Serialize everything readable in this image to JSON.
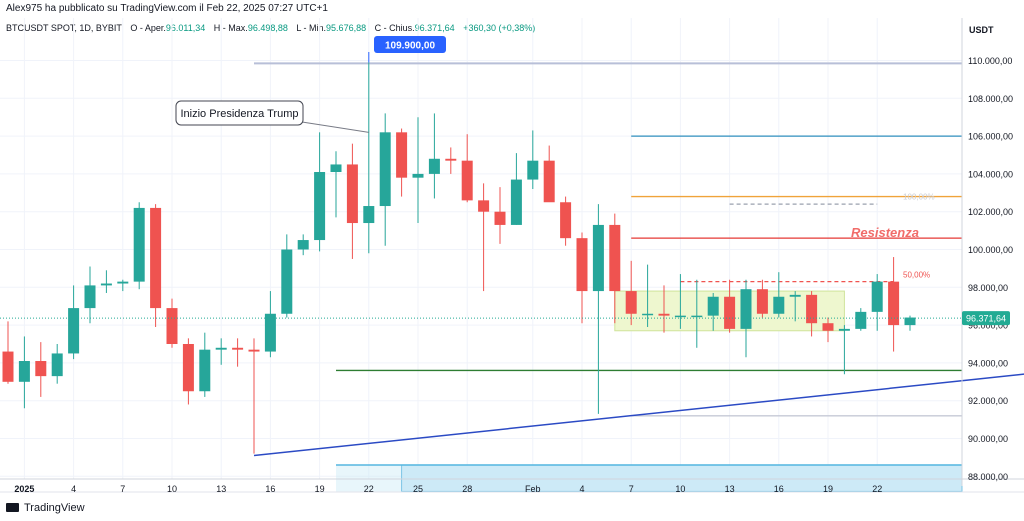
{
  "header": {
    "published_by": "Alex975 ha pubblicato su TradingView.com il Feb 22, 2025 07:27 UTC+1",
    "symbol": "BTCUSDT SPOT, 1D, BYBIT",
    "open_label": "O - Aper.",
    "open_value": "96.011,34",
    "high_label": "H - Max.",
    "high_value": "96.498,88",
    "low_label": "L - Min.",
    "low_value": "95.676,88",
    "close_label": "C - Chius.",
    "close_value": "96.371,64",
    "change_value": "+360,30 (+0,38%)"
  },
  "footer": {
    "logo_text": "TradingView"
  },
  "colors": {
    "up": "#26a69a",
    "down": "#ef5350",
    "support_line": "#2e7d32",
    "trendline": "#2b4ac4",
    "resistance_line": "#e53935",
    "orange_line": "#f0a33a",
    "teal_line": "#2f8fbe",
    "consolidation_box": "#eef7cf",
    "demand_zone": "#cdeaf7",
    "price_badge": "#22ab94",
    "callout_blue": "#2962ff"
  },
  "chart_data": {
    "type": "candlestick",
    "title": "BTCUSDT SPOT, 1D, BYBIT",
    "currency_label": "USDT",
    "ylim": [
      87200,
      112100
    ],
    "y_ticks": [
      88000,
      90000,
      92000,
      94000,
      96000,
      98000,
      100000,
      102000,
      104000,
      106000,
      108000,
      110000
    ],
    "y_tick_labels": [
      "88.000,00",
      "90.000,00",
      "92.000,00",
      "94.000,00",
      "96.000,00",
      "98.000,00",
      "100.000,00",
      "102.000,00",
      "104.000,00",
      "106.000,00",
      "108.000,00",
      "110.000,00"
    ],
    "x_tick_labels": [
      "2025",
      "4",
      "7",
      "10",
      "13",
      "16",
      "19",
      "22",
      "25",
      "28",
      "Feb",
      "4",
      "7",
      "10",
      "13",
      "16",
      "19",
      "22"
    ],
    "x_tick_dates": [
      "2025-01-01",
      "2025-01-04",
      "2025-01-07",
      "2025-01-10",
      "2025-01-13",
      "2025-01-16",
      "2025-01-19",
      "2025-01-22",
      "2025-01-25",
      "2025-01-28",
      "2025-02-01",
      "2025-02-04",
      "2025-02-07",
      "2025-02-10",
      "2025-02-13",
      "2025-02-16",
      "2025-02-19",
      "2025-02-22"
    ],
    "candles": [
      {
        "date": "2024-12-31",
        "open": 94600,
        "high": 96200,
        "low": 92900,
        "close": 93000
      },
      {
        "date": "2025-01-01",
        "open": 93000,
        "high": 95400,
        "low": 91600,
        "close": 94100
      },
      {
        "date": "2025-01-02",
        "open": 94100,
        "high": 95100,
        "low": 92200,
        "close": 93300
      },
      {
        "date": "2025-01-03",
        "open": 93300,
        "high": 95000,
        "low": 92900,
        "close": 94500
      },
      {
        "date": "2025-01-04",
        "open": 94500,
        "high": 98100,
        "low": 94200,
        "close": 96900
      },
      {
        "date": "2025-01-05",
        "open": 96900,
        "high": 99100,
        "low": 96100,
        "close": 98100
      },
      {
        "date": "2025-01-06",
        "open": 98100,
        "high": 98900,
        "low": 97700,
        "close": 98200
      },
      {
        "date": "2025-01-07",
        "open": 98200,
        "high": 98400,
        "low": 97800,
        "close": 98300
      },
      {
        "date": "2025-01-08",
        "open": 98300,
        "high": 102500,
        "low": 97900,
        "close": 102200
      },
      {
        "date": "2025-01-09",
        "open": 102200,
        "high": 102400,
        "low": 95900,
        "close": 96900
      },
      {
        "date": "2025-01-10",
        "open": 96900,
        "high": 97400,
        "low": 94800,
        "close": 95000
      },
      {
        "date": "2025-01-11",
        "open": 95000,
        "high": 95300,
        "low": 91800,
        "close": 92500
      },
      {
        "date": "2025-01-12",
        "open": 92500,
        "high": 95600,
        "low": 92200,
        "close": 94700
      },
      {
        "date": "2025-01-13",
        "open": 94700,
        "high": 95300,
        "low": 93900,
        "close": 94800
      },
      {
        "date": "2025-01-14",
        "open": 94800,
        "high": 95300,
        "low": 93800,
        "close": 94700
      },
      {
        "date": "2025-01-15",
        "open": 94700,
        "high": 95300,
        "low": 89200,
        "close": 94600
      },
      {
        "date": "2025-01-16",
        "open": 94600,
        "high": 97800,
        "low": 94300,
        "close": 96600
      },
      {
        "date": "2025-01-17",
        "open": 96600,
        "high": 100800,
        "low": 96400,
        "close": 100000
      },
      {
        "date": "2025-01-18",
        "open": 100000,
        "high": 100800,
        "low": 99700,
        "close": 100500
      },
      {
        "date": "2025-01-19",
        "open": 100500,
        "high": 106200,
        "low": 99900,
        "close": 104100
      },
      {
        "date": "2025-01-20",
        "open": 104100,
        "high": 105200,
        "low": 101700,
        "close": 104500
      },
      {
        "date": "2025-01-21",
        "open": 104500,
        "high": 105600,
        "low": 99500,
        "close": 101400
      },
      {
        "date": "2025-01-22",
        "open": 101400,
        "high": 109900,
        "low": 99800,
        "close": 102300
      },
      {
        "date": "2025-01-23",
        "open": 102300,
        "high": 107200,
        "low": 100200,
        "close": 106200
      },
      {
        "date": "2025-01-24",
        "open": 106200,
        "high": 106400,
        "low": 102800,
        "close": 103800
      },
      {
        "date": "2025-01-25",
        "open": 103800,
        "high": 107000,
        "low": 101400,
        "close": 104000
      },
      {
        "date": "2025-01-26",
        "open": 104000,
        "high": 107200,
        "low": 102700,
        "close": 104800
      },
      {
        "date": "2025-01-27",
        "open": 104800,
        "high": 105400,
        "low": 104000,
        "close": 104700
      },
      {
        "date": "2025-01-28",
        "open": 104700,
        "high": 106100,
        "low": 102500,
        "close": 102600
      },
      {
        "date": "2025-01-29",
        "open": 102600,
        "high": 103500,
        "low": 97800,
        "close": 102000
      },
      {
        "date": "2025-01-30",
        "open": 102000,
        "high": 103300,
        "low": 100300,
        "close": 101300
      },
      {
        "date": "2025-01-31",
        "open": 101300,
        "high": 105100,
        "low": 101300,
        "close": 103700
      },
      {
        "date": "2025-02-01",
        "open": 103700,
        "high": 106300,
        "low": 103200,
        "close": 104700
      },
      {
        "date": "2025-02-02",
        "open": 104700,
        "high": 105500,
        "low": 102600,
        "close": 102500
      },
      {
        "date": "2025-02-03",
        "open": 102500,
        "high": 102800,
        "low": 100200,
        "close": 100600
      },
      {
        "date": "2025-02-04",
        "open": 100600,
        "high": 100900,
        "low": 96100,
        "close": 97800
      },
      {
        "date": "2025-02-05",
        "open": 97800,
        "high": 102400,
        "low": 91300,
        "close": 101300
      },
      {
        "date": "2025-02-06",
        "open": 101300,
        "high": 101900,
        "low": 96100,
        "close": 97800
      },
      {
        "date": "2025-02-07",
        "open": 97800,
        "high": 99400,
        "low": 96000,
        "close": 96600
      },
      {
        "date": "2025-02-08",
        "open": 96600,
        "high": 99200,
        "low": 95900,
        "close": 96600
      },
      {
        "date": "2025-02-09",
        "open": 96600,
        "high": 98100,
        "low": 95600,
        "close": 96500
      },
      {
        "date": "2025-02-10",
        "open": 96500,
        "high": 98700,
        "low": 95800,
        "close": 96500
      },
      {
        "date": "2025-02-11",
        "open": 96500,
        "high": 98400,
        "low": 94800,
        "close": 96500
      },
      {
        "date": "2025-02-12",
        "open": 96500,
        "high": 97700,
        "low": 95700,
        "close": 97500
      },
      {
        "date": "2025-02-13",
        "open": 97500,
        "high": 98400,
        "low": 95600,
        "close": 95800
      },
      {
        "date": "2025-02-14",
        "open": 95800,
        "high": 98400,
        "low": 94300,
        "close": 97900
      },
      {
        "date": "2025-02-15",
        "open": 97900,
        "high": 98400,
        "low": 96400,
        "close": 96600
      },
      {
        "date": "2025-02-16",
        "open": 96600,
        "high": 98800,
        "low": 96400,
        "close": 97500
      },
      {
        "date": "2025-02-17",
        "open": 97500,
        "high": 97800,
        "low": 96200,
        "close": 97600
      },
      {
        "date": "2025-02-18",
        "open": 97600,
        "high": 97800,
        "low": 95400,
        "close": 96100
      },
      {
        "date": "2025-02-19",
        "open": 96100,
        "high": 96400,
        "low": 95100,
        "close": 95700
      },
      {
        "date": "2025-02-20",
        "open": 95700,
        "high": 96000,
        "low": 93400,
        "close": 95800
      },
      {
        "date": "2025-02-21",
        "open": 95800,
        "high": 96900,
        "low": 95700,
        "close": 96700
      },
      {
        "date": "2025-02-22",
        "open": 96700,
        "high": 98700,
        "low": 95700,
        "close": 98300
      },
      {
        "date": "2025-02-23",
        "open": 98300,
        "high": 99600,
        "low": 94600,
        "close": 96000
      },
      {
        "date": "2025-02-24",
        "open": 96000,
        "high": 96500,
        "low": 95700,
        "close": 96400
      }
    ],
    "horizontal_lines": [
      {
        "price": 109850,
        "start": "2025-01-15",
        "color": "#b8bfd8"
      },
      {
        "price": 106000,
        "start": "2025-02-07",
        "color": "#2f8fbe"
      },
      {
        "price": 102800,
        "start": "2025-02-07",
        "color": "#f0a33a"
      },
      {
        "price": 100600,
        "start": "2025-02-07",
        "color": "#e53935"
      },
      {
        "price": 93600,
        "start": "2025-01-20",
        "color": "#2e7d32"
      },
      {
        "price": 91200,
        "start": "2025-02-07",
        "color": "#c6c9d6"
      }
    ],
    "dashed_lines": [
      {
        "price": 98300,
        "start": "2025-02-10",
        "end": "2025-02-23",
        "color": "#ef5350"
      },
      {
        "price": 102400,
        "start": "2025-02-13",
        "end": "2025-02-22",
        "color": "#9aa0ae"
      }
    ],
    "trendline": {
      "start_date": "2025-01-15",
      "start_price": 89100,
      "end_date": "2025-03-04",
      "end_price": 93500
    },
    "consolidation_box": {
      "start": "2025-02-06",
      "end": "2025-02-20",
      "top": 97800,
      "bottom": 95700
    },
    "demand_zone": {
      "start": "2025-01-20",
      "end": "2025-03-04",
      "top": 88600,
      "bottom": 87200
    },
    "demand_zone_inner_start": "2025-01-24",
    "annotations": {
      "callout_text": "Inizio Presidenza Trump",
      "callout_target_date": "2025-01-22",
      "callout_target_price": 106200,
      "high_badge": "109.900,00",
      "high_badge_date": "2025-01-22",
      "high_badge_price": 109900,
      "resistance_label": "Resistenza",
      "fib_label": "50,00%",
      "fib_label_price": 98300,
      "faded_label": "100,00%",
      "faded_label_price": 102700,
      "last_price_label": "96.371,64",
      "last_price": 96371.64
    }
  }
}
